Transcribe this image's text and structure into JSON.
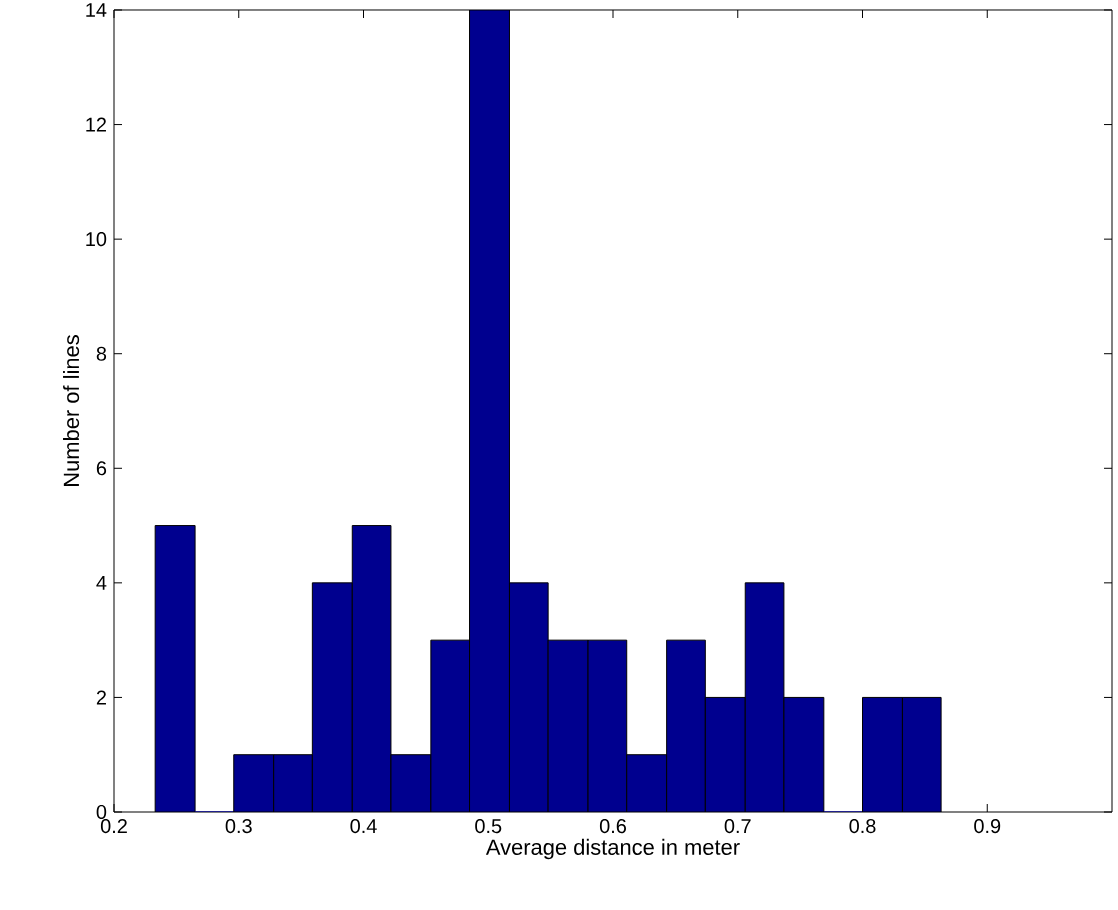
{
  "chart_data": {
    "type": "histogram",
    "xlabel": "Average distance in meter",
    "ylabel": "Number of lines",
    "bins": [
      0.233,
      0.265,
      0.296,
      0.328,
      0.359,
      0.391,
      0.422,
      0.454,
      0.485,
      0.517,
      0.548,
      0.58,
      0.611,
      0.643,
      0.674,
      0.706,
      0.737,
      0.769,
      0.8,
      0.832,
      0.863
    ],
    "values": [
      5,
      0,
      1,
      1,
      4,
      5,
      1,
      3,
      14,
      4,
      3,
      3,
      1,
      3,
      2,
      4,
      2,
      0,
      2,
      2
    ],
    "color": "#00008f",
    "xlim": [
      0.2,
      1.0
    ],
    "ylim": [
      0,
      14
    ],
    "xticks": [
      0.2,
      0.3,
      0.4,
      0.5,
      0.6,
      0.7,
      0.8,
      0.9
    ],
    "yticks": [
      0,
      2,
      4,
      6,
      8,
      10,
      12,
      14
    ],
    "grid": false
  }
}
